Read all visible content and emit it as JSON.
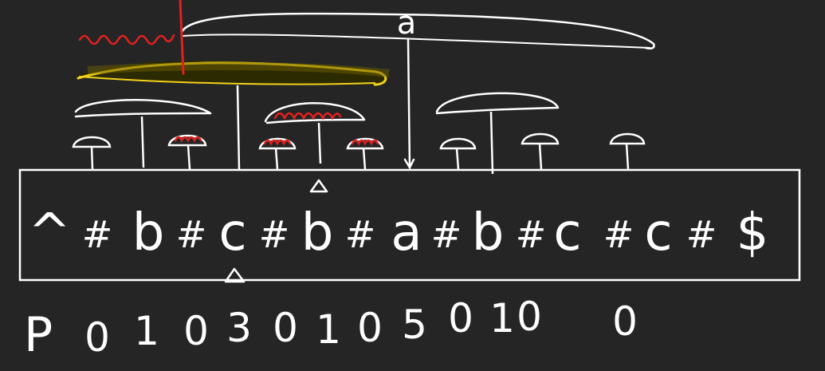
{
  "canvas": {
    "background": "#252525"
  },
  "colors": {
    "ink": "#ffffff",
    "highlight": "#f2d21a",
    "mark": "#e32020"
  },
  "strip": {
    "chars": [
      "^",
      "#",
      "b",
      "#",
      "c",
      "#",
      "b",
      "#",
      "a",
      "#",
      "b",
      "#",
      "c",
      "#",
      "c",
      "#",
      "$"
    ]
  },
  "p_row": {
    "label": "P",
    "values": [
      "0",
      "1",
      "0",
      "3",
      "0",
      "1",
      "0",
      "5",
      "0",
      "1",
      "0",
      "0"
    ]
  },
  "annotations": {
    "big_arc_label": "a"
  }
}
